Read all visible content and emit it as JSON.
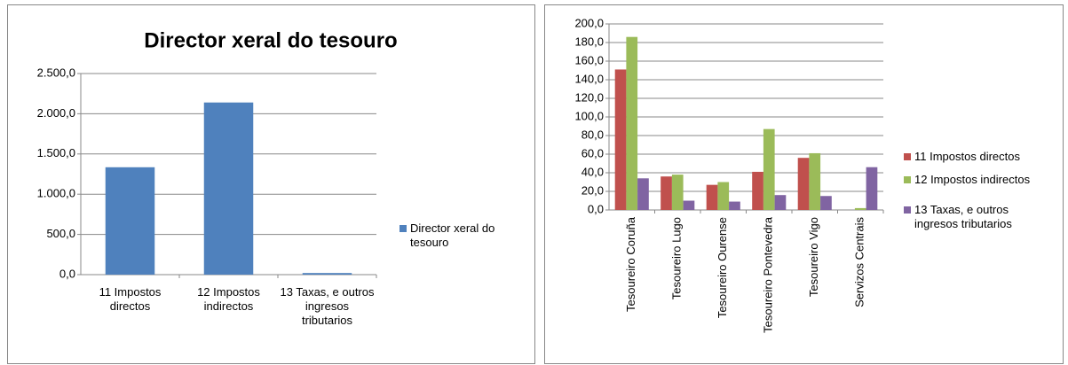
{
  "chart_data": [
    {
      "type": "bar",
      "title": "Director xeral do tesouro",
      "categories": [
        "11 Impostos directos",
        "12 Impostos indirectos",
        "13 Taxas, e outros ingresos tributarios"
      ],
      "series": [
        {
          "name": "Director xeral do tesouro",
          "color": "#4f81bd",
          "values": [
            1335,
            2140,
            20
          ]
        }
      ],
      "ylim": [
        0,
        2500
      ],
      "yticks": [
        {
          "value": 0,
          "label": "0,0"
        },
        {
          "value": 500,
          "label": "500,0"
        },
        {
          "value": 1000,
          "label": "1.000,0"
        },
        {
          "value": 1500,
          "label": "1.500,0"
        },
        {
          "value": 2000,
          "label": "2.000,0"
        },
        {
          "value": 2500,
          "label": "2.500,0"
        }
      ],
      "grid": true,
      "legend": "right"
    },
    {
      "type": "bar",
      "categories": [
        "Tesoureiro Coruña",
        "Tesoureiro Lugo",
        "Tesoureiro Ourense",
        "Tesoureiro Pontevedra",
        "Tesoureiro Vigo",
        "Servizos Centrais"
      ],
      "series": [
        {
          "name": "11 Impostos directos",
          "color": "#c0504d",
          "values": [
            151,
            36,
            27,
            41,
            56,
            0
          ]
        },
        {
          "name": "12 Impostos indirectos",
          "color": "#9bbb59",
          "values": [
            186,
            38,
            30,
            87,
            61,
            2
          ]
        },
        {
          "name": "13 Taxas, e outros ingresos tributarios",
          "color": "#8064a2",
          "values": [
            34,
            10,
            9,
            16,
            15,
            46
          ]
        }
      ],
      "ylim": [
        0,
        200
      ],
      "yticks": [
        {
          "value": 0,
          "label": "0,0"
        },
        {
          "value": 20,
          "label": "20,0"
        },
        {
          "value": 40,
          "label": "40,0"
        },
        {
          "value": 60,
          "label": "60,0"
        },
        {
          "value": 80,
          "label": "80,0"
        },
        {
          "value": 100,
          "label": "100,0"
        },
        {
          "value": 120,
          "label": "120,0"
        },
        {
          "value": 140,
          "label": "140,0"
        },
        {
          "value": 160,
          "label": "160,0"
        },
        {
          "value": 180,
          "label": "180,0"
        },
        {
          "value": 200,
          "label": "200,0"
        }
      ],
      "grid": true,
      "legend": "right"
    }
  ]
}
